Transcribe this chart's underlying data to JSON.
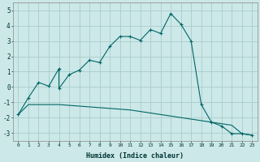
{
  "xlabel": "Humidex (Indice chaleur)",
  "background_color": "#cce8e8",
  "grid_color": "#aacccc",
  "line_color": "#006666",
  "xlim": [
    -0.5,
    23.5
  ],
  "ylim": [
    -3.5,
    5.5
  ],
  "xtick_values": [
    0,
    1,
    2,
    3,
    4,
    5,
    6,
    7,
    8,
    9,
    10,
    11,
    12,
    13,
    14,
    15,
    16,
    17,
    18,
    19,
    20,
    21,
    22,
    23
  ],
  "xtick_labels": [
    "0",
    "1",
    "2",
    "3",
    "4",
    "5",
    "6",
    "7",
    "8",
    "9",
    "10",
    "11",
    "12",
    "13",
    "14",
    "15",
    "16",
    "17",
    "18",
    "19",
    "20",
    "21",
    "22",
    "23"
  ],
  "ytick_values": [
    -3,
    -2,
    -1,
    0,
    1,
    2,
    3,
    4,
    5
  ],
  "ytick_labels": [
    "-3",
    "-2",
    "-1",
    "0",
    "1",
    "2",
    "3",
    "4",
    "5"
  ],
  "series1_x": [
    0,
    1,
    2,
    3,
    4,
    4,
    5,
    6,
    7,
    8,
    9,
    10,
    11,
    12,
    13,
    14,
    15,
    16,
    17,
    18,
    19,
    20,
    21,
    22,
    23
  ],
  "series1_y": [
    -1.8,
    -0.7,
    0.3,
    0.05,
    1.2,
    -0.1,
    0.8,
    1.1,
    1.75,
    1.6,
    2.65,
    3.3,
    3.3,
    3.05,
    3.75,
    3.5,
    4.8,
    4.1,
    3.0,
    -1.15,
    -2.3,
    -2.55,
    -3.05,
    -3.05,
    -3.15
  ],
  "series2_x": [
    0,
    1,
    2,
    3,
    4,
    5,
    6,
    7,
    8,
    9,
    10,
    11,
    12,
    13,
    14,
    15,
    16,
    17,
    18,
    19,
    20,
    21,
    22,
    23
  ],
  "series2_y": [
    -1.8,
    -1.15,
    -1.15,
    -1.15,
    -1.15,
    -1.2,
    -1.25,
    -1.3,
    -1.35,
    -1.4,
    -1.45,
    -1.5,
    -1.6,
    -1.7,
    -1.8,
    -1.9,
    -2.0,
    -2.1,
    -2.2,
    -2.3,
    -2.4,
    -2.5,
    -3.05,
    -3.15
  ]
}
